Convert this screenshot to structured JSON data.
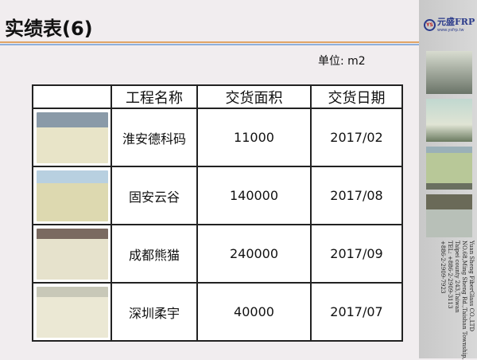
{
  "title": "实绩表(6)",
  "unit_label": "单位: m2",
  "table": {
    "headers": [
      "",
      "工程名称",
      "交货面积",
      "交货日期"
    ],
    "rows": [
      {
        "name": "淮安德科码",
        "area": "11000",
        "date": "2017/02"
      },
      {
        "name": "固安云谷",
        "area": "140000",
        "date": "2017/08"
      },
      {
        "name": "成都熊猫",
        "area": "240000",
        "date": "2017/09"
      },
      {
        "name": "深圳柔宇",
        "area": "40000",
        "date": "2017/07"
      }
    ]
  },
  "sidebar": {
    "logo_text": "元盛FRP",
    "logo_badge": "YS",
    "logo_url": "www.ysfrp.tw",
    "address": [
      "Yuan Sheng FiberGlass CO.,LTD",
      "NO.68,Ming Sheng Rd.,Taishan Township,",
      "Taipei county 243,Taiwan",
      "TEL: +886-2-2909-3113",
      "+886-2-2909-7923"
    ]
  }
}
